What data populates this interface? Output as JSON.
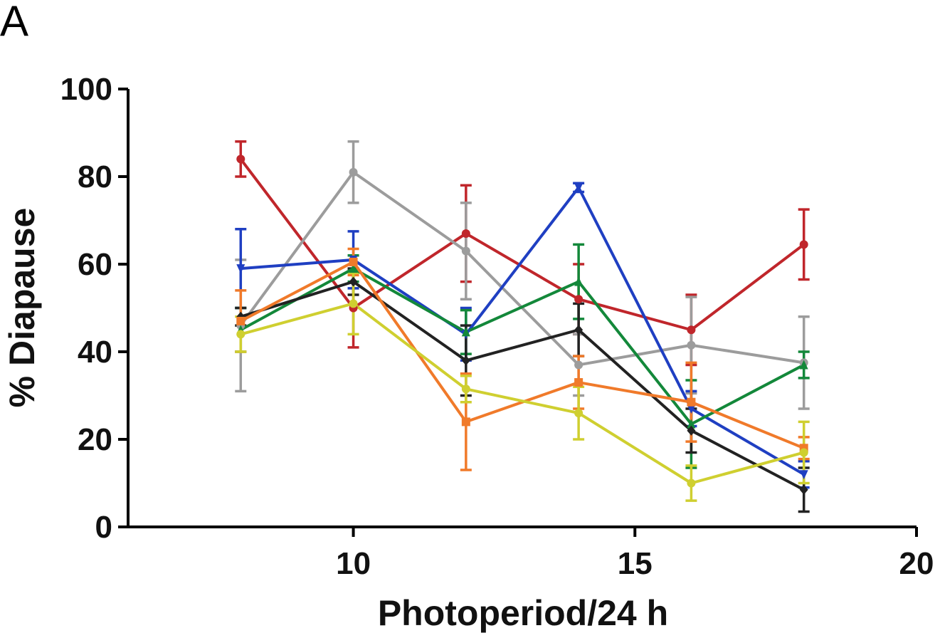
{
  "panel_label": "A",
  "chart_data": {
    "type": "line",
    "title": "",
    "xlabel": "Photoperiod/24 h",
    "ylabel": "% Diapause",
    "xlim": [
      6,
      20
    ],
    "ylim": [
      0,
      100
    ],
    "x_ticks": [
      10,
      15,
      20
    ],
    "y_ticks": [
      0,
      20,
      40,
      60,
      80,
      100
    ],
    "grid": false,
    "legend": "none",
    "x": [
      8,
      10,
      12,
      14,
      16,
      18
    ],
    "series": [
      {
        "color": "#c0262b",
        "marker": "circle",
        "values": [
          84,
          50,
          67,
          52,
          45,
          64.5
        ],
        "errors": [
          4,
          9,
          11,
          8,
          8,
          8
        ]
      },
      {
        "color": "#9c9c9c",
        "marker": "circle",
        "values": [
          46,
          81,
          63,
          37,
          41.5,
          37.5
        ],
        "errors": [
          15,
          7,
          11,
          7,
          11,
          10.5
        ]
      },
      {
        "color": "#1f3fc2",
        "marker": "triangle-down",
        "values": [
          59,
          61,
          44,
          77.5,
          27,
          12
        ],
        "errors": [
          9,
          6.5,
          6,
          1,
          4,
          3
        ]
      },
      {
        "color": "#13883a",
        "marker": "triangle-up",
        "values": [
          45,
          59,
          44.5,
          56,
          23.5,
          37
        ],
        "errors": [
          5,
          3,
          5,
          8.5,
          10,
          3
        ]
      },
      {
        "color": "#222222",
        "marker": "diamond",
        "values": [
          48,
          56,
          38,
          45,
          22,
          8.5
        ],
        "errors": [
          2,
          3,
          8,
          6,
          5,
          5
        ]
      },
      {
        "color": "#f07a2a",
        "marker": "square",
        "values": [
          47,
          60.5,
          24,
          33,
          28.5,
          18
        ],
        "errors": [
          7,
          3,
          11,
          6,
          9,
          2.5
        ]
      },
      {
        "color": "#cfcf30",
        "marker": "circle",
        "values": [
          44,
          51,
          31.5,
          26,
          10,
          17
        ],
        "errors": [
          4,
          7,
          3,
          6,
          4,
          7
        ]
      }
    ]
  }
}
